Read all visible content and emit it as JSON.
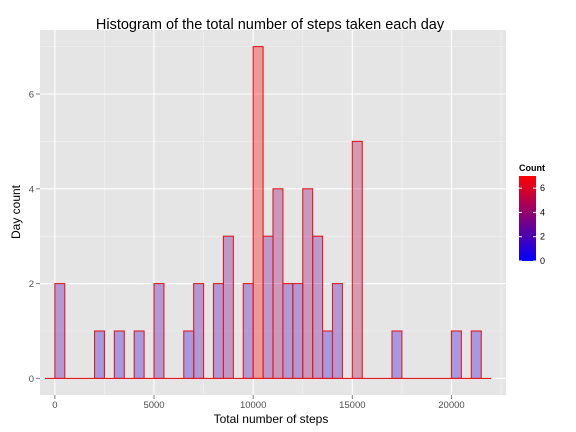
{
  "chart_data": {
    "type": "bar",
    "title": "Histogram of the total number of steps taken each day",
    "xlabel": "Total number of steps",
    "ylabel": "Day count",
    "bin_width": 1000,
    "x": [
      0,
      1000,
      2000,
      3000,
      4000,
      5000,
      6000,
      7000,
      8000,
      9000,
      10000,
      10500,
      11000,
      11500,
      12000,
      12500,
      13000,
      13500,
      14000,
      15000,
      16000,
      17000,
      18000,
      19000,
      20000,
      21000
    ],
    "values": [
      2,
      0,
      1,
      1,
      1,
      2,
      1,
      2,
      2,
      3,
      2,
      7,
      3,
      4,
      2,
      2,
      4,
      3,
      1,
      2,
      5,
      1,
      1,
      0,
      1,
      1
    ],
    "bars": [
      {
        "x": 250,
        "count": 2
      },
      {
        "x": 2250,
        "count": 1
      },
      {
        "x": 3250,
        "count": 1
      },
      {
        "x": 4250,
        "count": 1
      },
      {
        "x": 5250,
        "count": 2
      },
      {
        "x": 6750,
        "count": 1
      },
      {
        "x": 7250,
        "count": 2
      },
      {
        "x": 8250,
        "count": 2
      },
      {
        "x": 8750,
        "count": 3
      },
      {
        "x": 9750,
        "count": 2
      },
      {
        "x": 10250,
        "count": 7
      },
      {
        "x": 10750,
        "count": 3
      },
      {
        "x": 11250,
        "count": 4
      },
      {
        "x": 11750,
        "count": 2
      },
      {
        "x": 12250,
        "count": 2
      },
      {
        "x": 12750,
        "count": 4
      },
      {
        "x": 13250,
        "count": 3
      },
      {
        "x": 13750,
        "count": 1
      },
      {
        "x": 14250,
        "count": 2
      },
      {
        "x": 15250,
        "count": 5
      },
      {
        "x": 17250,
        "count": 1
      },
      {
        "x": 20250,
        "count": 1
      },
      {
        "x": 21250,
        "count": 1
      }
    ],
    "xlim": [
      -750,
      22750
    ],
    "ylim": [
      -0.35,
      7.35
    ],
    "x_ticks": [
      0,
      5000,
      10000,
      15000,
      20000
    ],
    "x_tick_labels": [
      "0",
      "5000",
      "10000",
      "15000",
      "20000"
    ],
    "y_ticks": [
      0,
      2,
      4,
      6
    ],
    "y_tick_labels": [
      "0",
      "2",
      "4",
      "6"
    ],
    "grid": true,
    "legend": {
      "title": "Count",
      "position": "right",
      "ticks": [
        0,
        2,
        4,
        6
      ],
      "labels": [
        "0",
        "2",
        "4",
        "6"
      ],
      "range": [
        0,
        7
      ],
      "low_color": "#0000ff",
      "high_color": "#ff0000"
    },
    "colors": {
      "panel_bg": "#e5e5e5",
      "grid_major": "#ffffff",
      "grid_minor": "#f2f2f2",
      "bar_outline": "#e41a1c",
      "bar_fill_opacity": 0.33
    }
  }
}
